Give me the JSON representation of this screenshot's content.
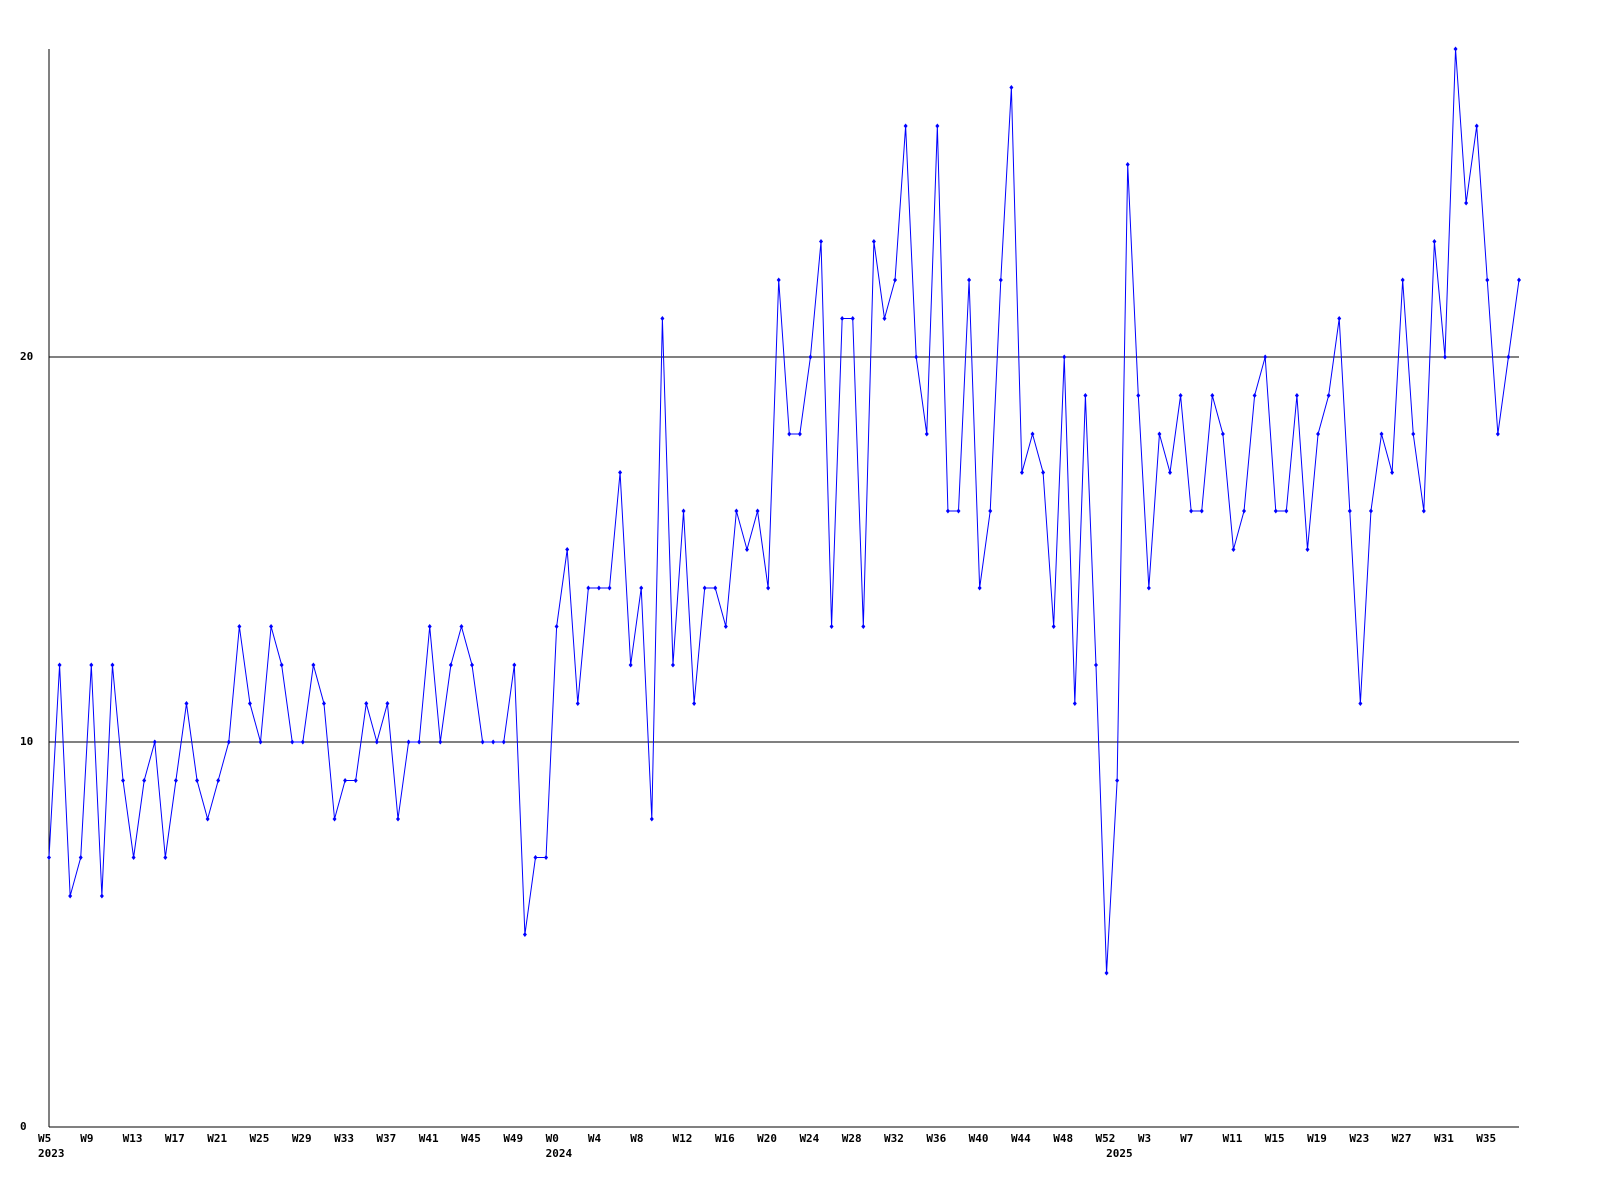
{
  "chart_data": {
    "type": "line",
    "color": "#0000ff",
    "grid": true,
    "ylim": [
      0,
      28
    ],
    "yticks": [
      0,
      10,
      20
    ],
    "categories": [
      "W5",
      null,
      null,
      null,
      "W9",
      null,
      null,
      null,
      "W13",
      null,
      null,
      null,
      "W17",
      null,
      null,
      null,
      "W21",
      null,
      null,
      null,
      "W25",
      null,
      null,
      null,
      "W29",
      null,
      null,
      null,
      "W33",
      null,
      null,
      null,
      "W37",
      null,
      null,
      null,
      "W41",
      null,
      null,
      null,
      "W45",
      null,
      null,
      null,
      "W49",
      null,
      null,
      null,
      "W0",
      null,
      null,
      null,
      "W4",
      null,
      null,
      null,
      "W8",
      null,
      null,
      null,
      "W12",
      null,
      null,
      null,
      "W16",
      null,
      null,
      null,
      "W20",
      null,
      null,
      null,
      "W24",
      null,
      null,
      null,
      "W28",
      null,
      null,
      null,
      "W32",
      null,
      null,
      null,
      "W36",
      null,
      null,
      null,
      "W40",
      null,
      null,
      null,
      "W44",
      null,
      null,
      null,
      "W48",
      null,
      null,
      null,
      "W52",
      null,
      null,
      null,
      "W3",
      null,
      null,
      null,
      "W7",
      null,
      null,
      null,
      "W11",
      null,
      null,
      null,
      "W15",
      null,
      null,
      null,
      "W19",
      null,
      null,
      null,
      "W23",
      null,
      null,
      null,
      "W27",
      null,
      null,
      null,
      "W31",
      null,
      null,
      null,
      "W35",
      null,
      null,
      null
    ],
    "category_years": [
      "2023",
      null,
      null,
      null,
      null,
      null,
      null,
      null,
      null,
      null,
      null,
      null,
      null,
      null,
      null,
      null,
      null,
      null,
      null,
      null,
      null,
      null,
      null,
      null,
      null,
      null,
      null,
      null,
      null,
      null,
      null,
      null,
      null,
      null,
      null,
      null,
      null,
      null,
      null,
      null,
      null,
      null,
      null,
      null,
      null,
      null,
      null,
      null,
      "2024",
      null,
      null,
      null,
      null,
      null,
      null,
      null,
      null,
      null,
      null,
      null,
      null,
      null,
      null,
      null,
      null,
      null,
      null,
      null,
      null,
      null,
      null,
      null,
      null,
      null,
      null,
      null,
      null,
      null,
      null,
      null,
      null,
      null,
      null,
      null,
      null,
      null,
      null,
      null,
      null,
      null,
      null,
      null,
      null,
      null,
      null,
      null,
      null,
      null,
      null,
      null,
      null,
      "2025",
      null,
      null,
      null,
      null,
      null,
      null,
      null,
      null,
      null,
      null,
      null,
      null,
      null,
      null,
      null,
      null,
      null,
      null,
      null,
      null,
      null,
      null,
      null,
      null,
      null,
      null,
      null,
      null,
      null,
      null,
      null,
      null,
      null,
      null,
      null,
      null,
      null,
      null
    ],
    "values": [
      7,
      12,
      6,
      7,
      12,
      6,
      12,
      9,
      7,
      9,
      10,
      7,
      9,
      11,
      9,
      8,
      9,
      10,
      13,
      11,
      10,
      13,
      12,
      10,
      10,
      12,
      11,
      8,
      9,
      9,
      11,
      10,
      11,
      8,
      10,
      10,
      13,
      10,
      12,
      13,
      12,
      10,
      10,
      10,
      12,
      5,
      7,
      7,
      13,
      15,
      11,
      14,
      14,
      14,
      17,
      12,
      14,
      8,
      21,
      12,
      16,
      11,
      14,
      14,
      13,
      16,
      15,
      16,
      14,
      22,
      18,
      18,
      20,
      23,
      13,
      21,
      21,
      13,
      23,
      21,
      22,
      26,
      20,
      18,
      26,
      16,
      16,
      22,
      14,
      16,
      22,
      27,
      17,
      18,
      17,
      13,
      20,
      11,
      19,
      12,
      4,
      9,
      25,
      19,
      14,
      18,
      17,
      19,
      16,
      16,
      19,
      18,
      15,
      16,
      19,
      20,
      16,
      16,
      19,
      15,
      18,
      19,
      21,
      16,
      11,
      16,
      18,
      17,
      22,
      18,
      16,
      23,
      20,
      28,
      24,
      26,
      22,
      18,
      20,
      22
    ]
  }
}
